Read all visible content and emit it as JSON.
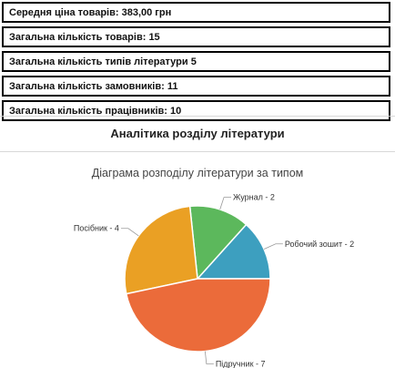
{
  "stats": [
    {
      "label": "Середня ціна товарів:",
      "value": "383,00 грн"
    },
    {
      "label": "Загальна кількість товарів:",
      "value": "15"
    },
    {
      "label": "Загальна кількість типів літератури",
      "value": "5"
    },
    {
      "label": "Загальна кількість замовників:",
      "value": "11"
    },
    {
      "label": "Загальна кількість працівників:",
      "value": "10"
    }
  ],
  "section_title": "Аналітика розділу літератури",
  "chart_data": {
    "type": "pie",
    "title": "Діаграма розподілу літератури за типом",
    "slices": [
      {
        "label": "Робочий зошит",
        "value": 2,
        "display": "Робочий зошит - 2",
        "color": "#3d9fbf"
      },
      {
        "label": "Журнал",
        "value": 2,
        "display": "Журнал - 2",
        "color": "#5cb85c"
      },
      {
        "label": "Посібник",
        "value": 4,
        "display": "Посібник - 4",
        "color": "#eaa024"
      },
      {
        "label": "Підручник",
        "value": 7,
        "display": "Підручник - 7",
        "color": "#eb6b3a"
      }
    ]
  }
}
